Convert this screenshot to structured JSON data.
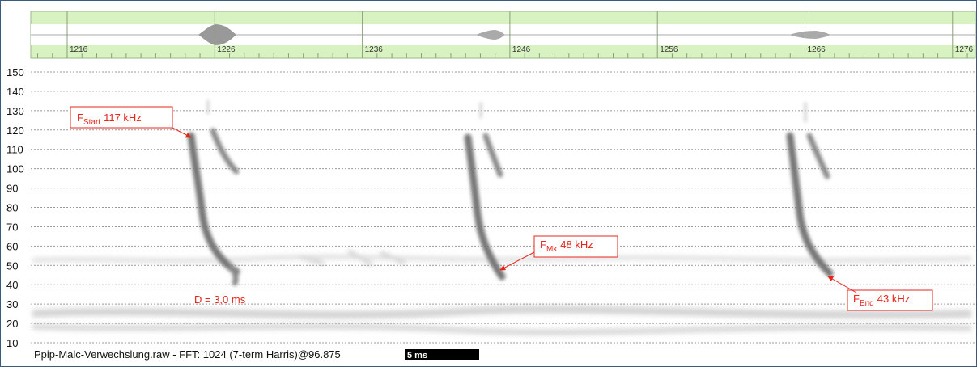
{
  "timeline": {
    "ticks": [
      "1216",
      "1226",
      "1236",
      "1246",
      "1256",
      "1266",
      "1276"
    ]
  },
  "y_axis": {
    "ticks": [
      "150",
      "140",
      "130",
      "120",
      "110",
      "100",
      "90",
      "80",
      "70",
      "60",
      "50",
      "40",
      "30",
      "20",
      "10"
    ]
  },
  "annotations": [
    {
      "symbol": "F",
      "subscript": "Start",
      "value": "117 kHz"
    },
    {
      "symbol": "F",
      "subscript": "Mk",
      "value": "48 kHz"
    },
    {
      "symbol": "F",
      "subscript": "End",
      "value": "43 kHz"
    }
  ],
  "duration_label": "D = 3,0 ms",
  "status": {
    "text": "Ppip-Malc-Verwechslung.raw - FFT: 1024 (7-term Harris)@96.875",
    "scale": "5 ms"
  }
}
